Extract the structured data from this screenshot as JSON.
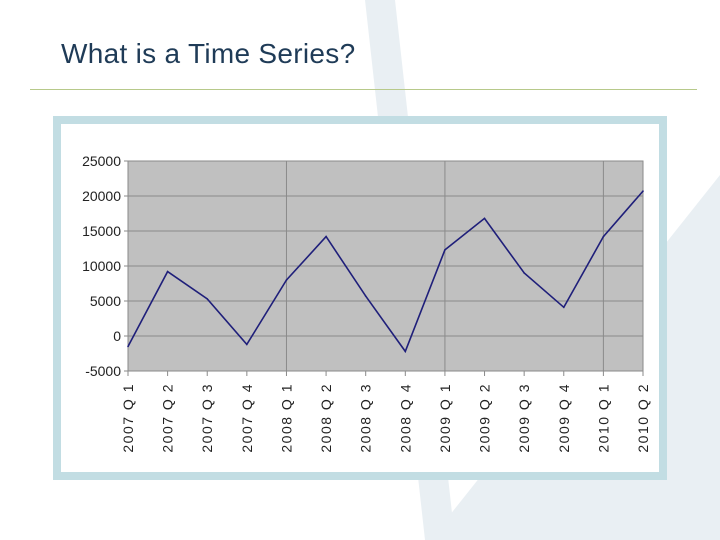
{
  "slide": {
    "title": "What is a Time Series?"
  },
  "colors": {
    "title": "#1f3b57",
    "rule": "#b7c98a",
    "frame": "#c2dde3",
    "plot_background": "#c0c0c0",
    "gridline": "#8a8a8a",
    "series_line": "#1f1f7a",
    "background_shape": "#e9eff3"
  },
  "chart_data": {
    "type": "line",
    "title": "",
    "xlabel": "",
    "ylabel": "",
    "categories": [
      "2007Q1",
      "2007Q2",
      "2007Q3",
      "2007Q4",
      "2008Q1",
      "2008Q2",
      "2008Q3",
      "2008Q4",
      "2009Q1",
      "2009Q2",
      "2009Q3",
      "2009Q4",
      "2010Q1",
      "2010Q2"
    ],
    "x_tick_labels": [
      "2007 Q 1",
      "2007 Q 2",
      "2007 Q 3",
      "2007 Q 4",
      "2008 Q 1",
      "2008 Q 2",
      "2008 Q 3",
      "2008 Q 4",
      "2009 Q 1",
      "2009 Q 2",
      "2009 Q 3",
      "2009 Q 4",
      "2010 Q 1",
      "2010 Q 2"
    ],
    "series": [
      {
        "values": [
          -1500,
          9200,
          5300,
          -1200,
          8000,
          14200,
          5700,
          -2200,
          12300,
          16800,
          9000,
          4100,
          14200,
          20700
        ]
      }
    ],
    "ylim": [
      -5000,
      25000
    ],
    "y_ticks": [
      -5000,
      0,
      5000,
      10000,
      15000,
      20000,
      25000
    ],
    "y_tick_labels": [
      "-5000",
      "0",
      "5000",
      "10000",
      "15000",
      "20000",
      "25000"
    ],
    "grid": {
      "horizontal": true,
      "vertical_every_n_categories": 4
    },
    "legend": "none"
  }
}
